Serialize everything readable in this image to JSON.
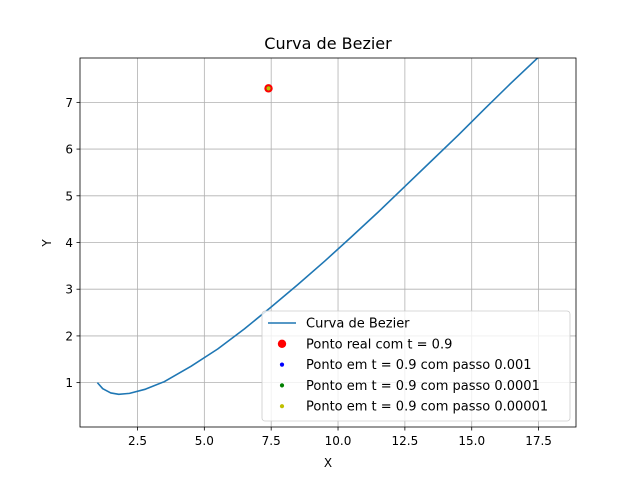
{
  "chart_data": {
    "type": "line",
    "title": "Curva de Bezier",
    "xlabel": "X",
    "ylabel": "Y",
    "xlim": [
      0.35,
      18.9
    ],
    "ylim": [
      0.05,
      7.95
    ],
    "xticks": [
      2.5,
      5.0,
      7.5,
      10.0,
      12.5,
      15.0,
      17.5
    ],
    "xtick_labels": [
      "2.5",
      "5.0",
      "7.5",
      "10.0",
      "12.5",
      "15.0",
      "17.5"
    ],
    "yticks": [
      1,
      2,
      3,
      4,
      5,
      6,
      7
    ],
    "ytick_labels": [
      "1",
      "2",
      "3",
      "4",
      "5",
      "6",
      "7"
    ],
    "grid": true,
    "legend_position": "lower-right",
    "series": [
      {
        "name": "Curva de Bezier",
        "kind": "line",
        "color": "#1f77b4",
        "x": [
          1.0,
          1.2,
          1.5,
          1.8,
          2.2,
          2.8,
          3.5,
          4.5,
          5.5,
          6.5,
          7.5,
          8.5,
          9.5,
          10.5,
          11.5,
          12.5,
          13.5,
          14.5,
          15.5,
          16.5,
          17.5,
          18.1
        ],
        "y": [
          1.0,
          0.87,
          0.78,
          0.75,
          0.77,
          0.86,
          1.02,
          1.35,
          1.72,
          2.15,
          2.62,
          3.1,
          3.6,
          4.12,
          4.65,
          5.2,
          5.75,
          6.3,
          6.87,
          7.43,
          7.97,
          8.3
        ]
      },
      {
        "name": "Ponto real com t = 0.9",
        "kind": "point",
        "color": "#ff0000",
        "size": "large",
        "x": [
          7.4
        ],
        "y": [
          7.3
        ]
      },
      {
        "name": "Ponto em t = 0.9 com passo 0.001",
        "kind": "point",
        "color": "#0000ff",
        "size": "small",
        "x": [
          7.4
        ],
        "y": [
          7.3
        ]
      },
      {
        "name": "Ponto em t = 0.9 com passo 0.0001",
        "kind": "point",
        "color": "#008000",
        "size": "small",
        "x": [
          7.4
        ],
        "y": [
          7.3
        ]
      },
      {
        "name": "Ponto em t = 0.9 com passo 0.00001",
        "kind": "point",
        "color": "#bfbf00",
        "size": "small",
        "x": [
          7.4
        ],
        "y": [
          7.3
        ]
      }
    ]
  }
}
